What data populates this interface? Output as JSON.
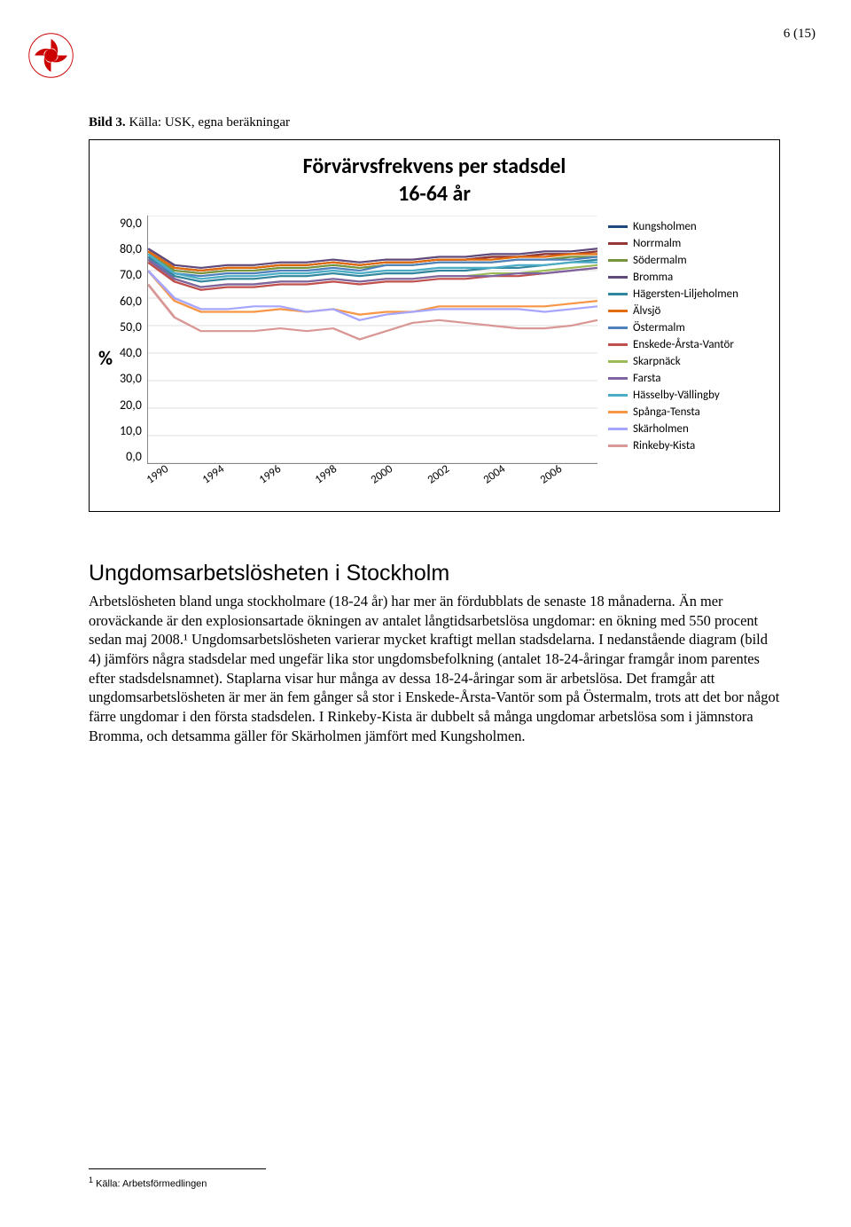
{
  "page_number": "6 (15)",
  "caption_bold": "Bild 3.",
  "caption_rest": " Källa: USK, egna beräkningar",
  "chart": {
    "type": "line",
    "title": "Förvärvsfrekvens per stadsdel",
    "subtitle": "16-64 år",
    "y_label": "%",
    "y_ticks": [
      "90,0",
      "80,0",
      "70,0",
      "60,0",
      "50,0",
      "40,0",
      "30,0",
      "20,0",
      "10,0",
      "0,0"
    ],
    "x_ticks": [
      "1990",
      "1994",
      "1996",
      "1998",
      "2000",
      "2002",
      "2004",
      "2006"
    ],
    "ylim": [
      0,
      90
    ],
    "background_color": "#ffffff",
    "grid_color": "#bfbfbf",
    "line_width": 2.2,
    "series": [
      {
        "name": "Kungsholmen",
        "color": "#1f497d",
        "values": [
          77,
          71,
          70,
          71,
          71,
          72,
          72,
          73,
          72,
          73,
          73,
          74,
          74,
          75,
          75,
          76,
          76,
          77
        ]
      },
      {
        "name": "Norrmalm",
        "color": "#953735",
        "values": [
          77,
          71,
          70,
          71,
          71,
          72,
          72,
          73,
          72,
          73,
          73,
          74,
          74,
          75,
          75,
          76,
          76,
          77
        ]
      },
      {
        "name": "Södermalm",
        "color": "#77933c",
        "values": [
          76,
          70,
          69,
          70,
          70,
          71,
          71,
          72,
          71,
          72,
          72,
          73,
          73,
          73,
          74,
          74,
          75,
          75
        ]
      },
      {
        "name": "Bromma",
        "color": "#604a7b",
        "values": [
          78,
          72,
          71,
          72,
          72,
          73,
          73,
          74,
          73,
          74,
          74,
          75,
          75,
          76,
          76,
          77,
          77,
          78
        ]
      },
      {
        "name": "Hägersten-Liljeholmen",
        "color": "#31859c",
        "values": [
          75,
          68,
          66,
          67,
          67,
          68,
          68,
          69,
          68,
          69,
          69,
          70,
          70,
          71,
          71,
          72,
          73,
          74
        ]
      },
      {
        "name": "Älvsjö",
        "color": "#e46c0a",
        "values": [
          77,
          71,
          70,
          71,
          71,
          72,
          72,
          73,
          72,
          73,
          73,
          74,
          74,
          74,
          75,
          75,
          76,
          76
        ]
      },
      {
        "name": "Östermalm",
        "color": "#4f81bd",
        "values": [
          74,
          69,
          68,
          69,
          69,
          70,
          70,
          71,
          70,
          72,
          72,
          73,
          73,
          73,
          74,
          74,
          74,
          75
        ]
      },
      {
        "name": "Enskede-Årsta-Vantör",
        "color": "#c0504d",
        "values": [
          73,
          66,
          63,
          64,
          64,
          65,
          65,
          66,
          65,
          66,
          66,
          67,
          67,
          68,
          68,
          69,
          70,
          71
        ]
      },
      {
        "name": "Skarpnäck",
        "color": "#9bbb59",
        "values": [
          74,
          67,
          64,
          65,
          65,
          66,
          66,
          67,
          66,
          67,
          67,
          68,
          68,
          69,
          69,
          70,
          71,
          72
        ]
      },
      {
        "name": "Farsta",
        "color": "#8064a2",
        "values": [
          74,
          67,
          64,
          65,
          65,
          66,
          66,
          67,
          66,
          67,
          67,
          68,
          68,
          68,
          69,
          69,
          70,
          71
        ]
      },
      {
        "name": "Hässelby-Vällingby",
        "color": "#4bacc6",
        "values": [
          76,
          69,
          67,
          68,
          68,
          69,
          69,
          70,
          69,
          70,
          70,
          71,
          71,
          71,
          72,
          72,
          73,
          73
        ]
      },
      {
        "name": "Spånga-Tensta",
        "color": "#f79646",
        "values": [
          70,
          59,
          55,
          55,
          55,
          56,
          55,
          56,
          54,
          55,
          55,
          57,
          57,
          57,
          57,
          57,
          58,
          59
        ]
      },
      {
        "name": "Skärholmen",
        "color": "#a6a6ff",
        "values": [
          70,
          60,
          56,
          56,
          57,
          57,
          55,
          56,
          52,
          54,
          55,
          56,
          56,
          56,
          56,
          55,
          56,
          57
        ]
      },
      {
        "name": "Rinkeby-Kista",
        "color": "#d99795",
        "values": [
          65,
          53,
          48,
          48,
          48,
          49,
          48,
          49,
          45,
          48,
          51,
          52,
          51,
          50,
          49,
          49,
          50,
          52
        ]
      }
    ]
  },
  "heading": "Ungdomsarbetslösheten i Stockholm",
  "body": "Arbetslösheten bland unga stockholmare (18-24 år) har mer än fördubblats de senaste 18 månaderna. Än mer oroväckande är den explosionsartade ökningen av antalet långtidsarbetslösa ungdomar: en ökning med 550 procent sedan maj 2008.¹ Ungdomsarbetslösheten varierar mycket kraftigt mellan stadsdelarna. I nedanstående diagram (bild 4) jämförs några stadsdelar med ungefär lika stor ungdomsbefolkning (antalet 18-24-åringar framgår inom parentes efter stadsdelsnamnet). Staplarna visar hur många av dessa 18-24-åringar som är arbetslösa. Det framgår att ungdomsarbetslösheten är mer än fem gånger så stor i Enskede-Årsta-Vantör som på Östermalm, trots att det bor något färre ungdomar i den första stadsdelen. I Rinkeby-Kista är dubbelt så många ungdomar arbetslösa som i jämnstora Bromma, och detsamma gäller för Skärholmen jämfört med Kungsholmen.",
  "footnote_marker": "1",
  "footnote_text": " Källa: Arbetsförmedlingen"
}
